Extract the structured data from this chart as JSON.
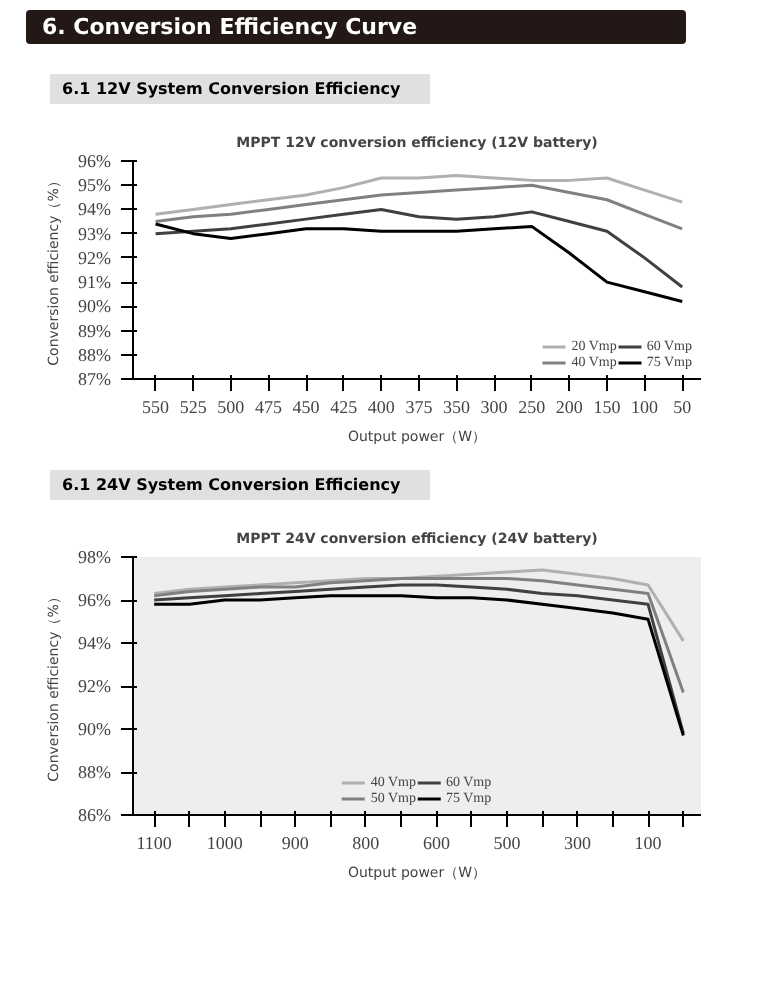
{
  "chart_data": [
    {
      "type": "line",
      "title": "MPPT 12V conversion efficiency (12V battery)",
      "xlabel": "Output power（W）",
      "ylabel": "Conversion efficiency（%）",
      "annotations": [
        "6. Conversion Efficiency Curve",
        "6.1 12V System Conversion Efficiency"
      ],
      "categories": [
        "550",
        "525",
        "500",
        "475",
        "450",
        "425",
        "400",
        "375",
        "350",
        "300",
        "250",
        "200",
        "150",
        "100",
        "50"
      ],
      "series": [
        {
          "name": "20 Vmp",
          "color": "#b0b0b0",
          "values": [
            93.8,
            94.0,
            94.2,
            94.4,
            94.6,
            94.9,
            95.3,
            95.3,
            95.4,
            95.3,
            95.2,
            95.2,
            95.3,
            94.8,
            94.3
          ]
        },
        {
          "name": "40 Vmp",
          "color": "#808080",
          "values": [
            93.5,
            93.7,
            93.8,
            94.0,
            94.2,
            94.4,
            94.6,
            94.7,
            94.8,
            94.9,
            95.0,
            94.7,
            94.4,
            93.8,
            93.2
          ]
        },
        {
          "name": "60 Vmp",
          "color": "#404040",
          "values": [
            93.0,
            93.1,
            93.2,
            93.4,
            93.6,
            93.8,
            94.0,
            93.7,
            93.6,
            93.7,
            93.9,
            93.5,
            93.1,
            92.0,
            90.8
          ]
        },
        {
          "name": "75 Vmp",
          "color": "#000000",
          "values": [
            93.4,
            93.0,
            92.8,
            93.0,
            93.2,
            93.2,
            93.1,
            93.1,
            93.1,
            93.2,
            93.3,
            92.2,
            91.0,
            90.6,
            90.2
          ]
        }
      ],
      "ylim": [
        87,
        96
      ],
      "yticks": [
        {
          "value": 87,
          "label": "87%"
        },
        {
          "value": 88,
          "label": "88%"
        },
        {
          "value": 89,
          "label": "89%"
        },
        {
          "value": 90,
          "label": "90%"
        },
        {
          "value": 91,
          "label": "91%"
        },
        {
          "value": 92,
          "label": "92%"
        },
        {
          "value": 93,
          "label": "93%"
        },
        {
          "value": 94,
          "label": "94%"
        },
        {
          "value": 95,
          "label": "95%"
        },
        {
          "value": 96,
          "label": "96%"
        }
      ],
      "grid": false,
      "legend": "bottom right",
      "marker": "none",
      "line_style": "solid"
    },
    {
      "type": "line",
      "title": "MPPT 24V conversion efficiency (24V battery)",
      "xlabel": "Output power（W）",
      "ylabel": "Conversion efficiency（%）",
      "annotations": [
        "6.1 24V System Conversion Efficiency"
      ],
      "categories": [
        "1100",
        null,
        "1000",
        null,
        "900",
        null,
        "800",
        null,
        "600",
        null,
        "500",
        null,
        "300",
        null,
        "100",
        null
      ],
      "series": [
        {
          "name": "40 Vmp",
          "color": "#b0b0b0",
          "values": [
            96.3,
            96.5,
            96.6,
            96.7,
            96.8,
            96.9,
            97.0,
            97.0,
            97.1,
            97.2,
            97.3,
            97.4,
            97.2,
            97.0,
            96.7,
            94.1
          ]
        },
        {
          "name": "50 Vmp",
          "color": "#808080",
          "values": [
            96.2,
            96.4,
            96.5,
            96.6,
            96.6,
            96.8,
            96.9,
            97.0,
            97.0,
            97.0,
            97.0,
            96.9,
            96.7,
            96.5,
            96.3,
            91.7
          ]
        },
        {
          "name": "60 Vmp",
          "color": "#404040",
          "values": [
            96.0,
            96.1,
            96.2,
            96.3,
            96.4,
            96.5,
            96.6,
            96.7,
            96.7,
            96.6,
            96.5,
            96.3,
            96.2,
            96.0,
            95.8,
            89.8
          ]
        },
        {
          "name": "75 Vmp",
          "color": "#000000",
          "values": [
            95.8,
            95.8,
            96.0,
            96.0,
            96.1,
            96.2,
            96.2,
            96.2,
            96.1,
            96.1,
            96.0,
            95.8,
            95.6,
            95.4,
            95.1,
            89.7
          ]
        }
      ],
      "ylim": [
        86,
        98
      ],
      "yticks": [
        {
          "value": 86,
          "label": "86%"
        },
        {
          "value": 88,
          "label": "88%"
        },
        {
          "value": 90,
          "label": "90%"
        },
        {
          "value": 92,
          "label": "92%"
        },
        {
          "value": 94,
          "label": "94%"
        },
        {
          "value": 96,
          "label": "96%"
        },
        {
          "value": 98,
          "label": "98%"
        }
      ],
      "grid": false,
      "legend": "bottom",
      "marker": "none",
      "line_style": "solid"
    }
  ]
}
